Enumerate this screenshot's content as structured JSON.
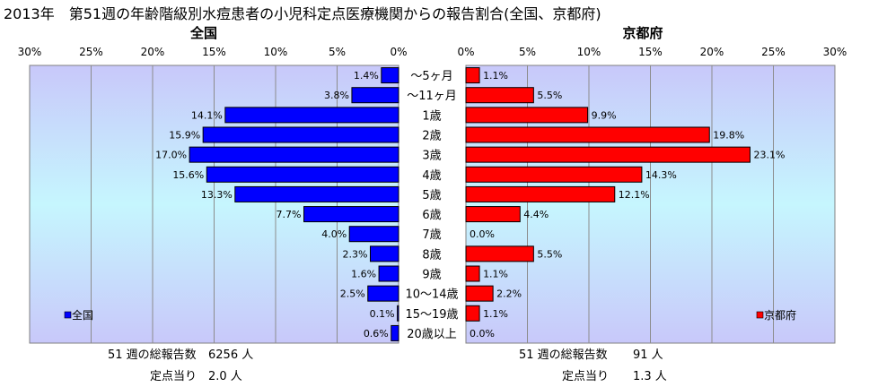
{
  "title": "2013年　第51週の年齢階級別水痘患者の小児科定点医療機関からの報告割合(全国、京都府)",
  "chart_data": [
    {
      "type": "bar",
      "orientation": "horizontal",
      "direction": "right-to-left",
      "title": "全国",
      "xlim": [
        0,
        30
      ],
      "xticks": [
        "30%",
        "25%",
        "20%",
        "15%",
        "10%",
        "5%",
        "0%"
      ],
      "categories": [
        "～5ヶ月",
        "～11ヶ月",
        "1歳",
        "2歳",
        "3歳",
        "4歳",
        "5歳",
        "6歳",
        "7歳",
        "8歳",
        "9歳",
        "10～14歳",
        "15～19歳",
        "20歳以上"
      ],
      "series": [
        {
          "name": "全国",
          "color": "#0000ff",
          "values": [
            1.4,
            3.8,
            14.1,
            15.9,
            17.0,
            15.6,
            13.3,
            7.7,
            4.0,
            2.3,
            1.6,
            2.5,
            0.1,
            0.6
          ],
          "labels": [
            "1.4%",
            "3.8%",
            "14.1%",
            "15.9%",
            "17.0%",
            "15.6%",
            "13.3%",
            "7.7%",
            "4.0%",
            "2.3%",
            "1.6%",
            "2.5%",
            "0.1%",
            "0.6%"
          ]
        }
      ],
      "legend": "bottom-left",
      "grid": true
    },
    {
      "type": "bar",
      "orientation": "horizontal",
      "direction": "left-to-right",
      "title": "京都府",
      "xlim": [
        0,
        30
      ],
      "xticks": [
        "0%",
        "5%",
        "10%",
        "15%",
        "20%",
        "25%",
        "30%"
      ],
      "categories": [
        "～5ヶ月",
        "～11ヶ月",
        "1歳",
        "2歳",
        "3歳",
        "4歳",
        "5歳",
        "6歳",
        "7歳",
        "8歳",
        "9歳",
        "10～14歳",
        "15～19歳",
        "20歳以上"
      ],
      "series": [
        {
          "name": "京都府",
          "color": "#ff0000",
          "values": [
            1.1,
            5.5,
            9.9,
            19.8,
            23.1,
            14.3,
            12.1,
            4.4,
            0.0,
            5.5,
            1.1,
            2.2,
            1.1,
            0.0
          ],
          "labels": [
            "1.1%",
            "5.5%",
            "9.9%",
            "19.8%",
            "23.1%",
            "14.3%",
            "12.1%",
            "4.4%",
            "0.0%",
            "5.5%",
            "1.1%",
            "2.2%",
            "1.1%",
            "0.0%"
          ]
        }
      ],
      "legend": "bottom-right",
      "grid": true
    }
  ],
  "footer": {
    "national": {
      "total_label": "51 週の総報告数",
      "total_value": "6256 人",
      "per_label": "定点当り",
      "per_value": "2.0 人"
    },
    "kyoto": {
      "total_label": "51 週の総報告数",
      "total_value": "91 人",
      "per_label": "定点当り",
      "per_value": "1.3 人"
    }
  }
}
